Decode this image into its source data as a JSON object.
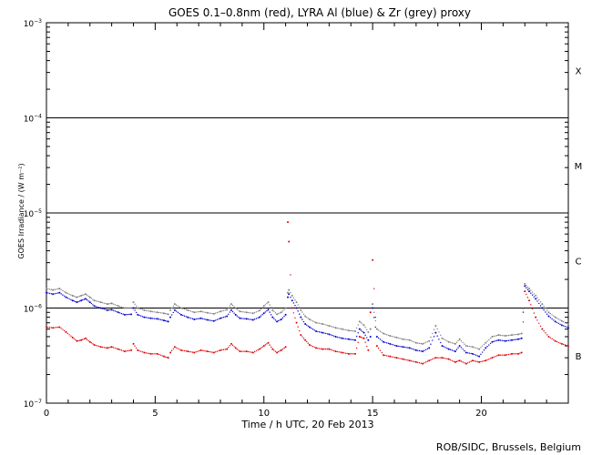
{
  "chart_data": {
    "type": "scatter",
    "title": "GOES 0.1–0.8nm (red), LYRA Al (blue) & Zr (grey) proxy",
    "xlabel": "Time / h UTC, 20 Feb 2013",
    "ylabel": "GOES Irradiance / (W m⁻²)",
    "credit": "ROB/SIDC, Brussels, Belgium",
    "xlim": [
      0,
      24
    ],
    "ylim": [
      1e-07,
      0.001
    ],
    "y_scale": "log",
    "x_ticks": [
      "0",
      "5",
      "10",
      "15",
      "20"
    ],
    "x_tick_values": [
      0,
      5,
      10,
      15,
      20
    ],
    "y_tick_values": [
      1e-07,
      1e-06,
      1e-05,
      0.0001,
      0.001
    ],
    "y_tick_labels": [
      {
        "base": "10",
        "exp": "−7"
      },
      {
        "base": "10",
        "exp": "−6"
      },
      {
        "base": "10",
        "exp": "−5"
      },
      {
        "base": "10",
        "exp": "−4"
      },
      {
        "base": "10",
        "exp": "−3"
      }
    ],
    "class_lines": [
      1e-06,
      1e-05,
      0.0001
    ],
    "flare_classes": [
      {
        "label": "X",
        "value": 0.000316
      },
      {
        "label": "M",
        "value": 3.16e-05
      },
      {
        "label": "C",
        "value": 3.16e-06
      },
      {
        "label": "B",
        "value": 3.16e-07
      }
    ],
    "colors": {
      "red": "#dd0000",
      "blue": "#0000cc",
      "grey": "#808080"
    },
    "series": [
      {
        "color": "red",
        "x": [
          0,
          0.3,
          0.6,
          0.9,
          1.2,
          1.4,
          1.6,
          1.8,
          2.0,
          2.2,
          2.5,
          2.8,
          3.0,
          3.3,
          3.6,
          3.9,
          4.0,
          4.2,
          4.5,
          4.8,
          5.1,
          5.4,
          5.6,
          5.7,
          5.9,
          6.2,
          6.5,
          6.8,
          7.1,
          7.4,
          7.7,
          8.0,
          8.3,
          8.5,
          8.7,
          8.9,
          9.2,
          9.5,
          9.8,
          10.0,
          10.2,
          10.4,
          10.6,
          10.8,
          11.0,
          11.1,
          11.15,
          11.3,
          11.5,
          11.7,
          11.9,
          12.1,
          12.4,
          12.7,
          13.0,
          13.3,
          13.6,
          13.9,
          14.2,
          14.4,
          14.6,
          14.8,
          14.9,
          15.0,
          15.2,
          15.5,
          15.8,
          16.1,
          16.4,
          16.7,
          17.0,
          17.3,
          17.6,
          17.9,
          18.2,
          18.5,
          18.8,
          19.0,
          19.3,
          19.6,
          19.9,
          20.2,
          20.5,
          20.8,
          21.1,
          21.4,
          21.7,
          21.85,
          22.0,
          22.2,
          22.5,
          22.8,
          23.1,
          23.4,
          23.7,
          24.0
        ],
        "y": [
          6.3e-07,
          6.2e-07,
          6.3e-07,
          5.6e-07,
          4.9e-07,
          4.5e-07,
          4.6e-07,
          4.8e-07,
          4.4e-07,
          4.1e-07,
          3.9e-07,
          3.8e-07,
          3.9e-07,
          3.7e-07,
          3.5e-07,
          3.6e-07,
          4.2e-07,
          3.6e-07,
          3.4e-07,
          3.3e-07,
          3.3e-07,
          3.1e-07,
          3e-07,
          3.4e-07,
          3.9e-07,
          3.6e-07,
          3.5e-07,
          3.4e-07,
          3.6e-07,
          3.5e-07,
          3.4e-07,
          3.6e-07,
          3.7e-07,
          4.2e-07,
          3.8e-07,
          3.5e-07,
          3.5e-07,
          3.4e-07,
          3.7e-07,
          4e-07,
          4.3e-07,
          3.7e-07,
          3.4e-07,
          3.6e-07,
          3.9e-07,
          8e-06,
          5e-06,
          1e-06,
          7e-07,
          5.2e-07,
          4.6e-07,
          4.1e-07,
          3.8e-07,
          3.7e-07,
          3.7e-07,
          3.5e-07,
          3.4e-07,
          3.3e-07,
          3.3e-07,
          5e-07,
          4.8e-07,
          3.6e-07,
          9e-07,
          3.2e-06,
          4e-07,
          3.2e-07,
          3.1e-07,
          3e-07,
          2.9e-07,
          2.8e-07,
          2.7e-07,
          2.6e-07,
          2.8e-07,
          3e-07,
          3e-07,
          2.9e-07,
          2.7e-07,
          2.8e-07,
          2.6e-07,
          2.8e-07,
          2.7e-07,
          2.8e-07,
          3e-07,
          3.2e-07,
          3.2e-07,
          3.3e-07,
          3.3e-07,
          3.4e-07,
          1.5e-06,
          1.2e-06,
          8e-07,
          6e-07,
          5e-07,
          4.5e-07,
          4.2e-07,
          4e-07
        ]
      },
      {
        "color": "blue",
        "x": [
          0,
          0.3,
          0.6,
          0.9,
          1.2,
          1.4,
          1.6,
          1.8,
          2.0,
          2.2,
          2.5,
          2.8,
          3.0,
          3.3,
          3.6,
          3.9,
          4.0,
          4.2,
          4.5,
          4.8,
          5.1,
          5.4,
          5.6,
          5.7,
          5.9,
          6.2,
          6.5,
          6.8,
          7.1,
          7.4,
          7.7,
          8.0,
          8.3,
          8.5,
          8.7,
          8.9,
          9.2,
          9.5,
          9.8,
          10.0,
          10.2,
          10.4,
          10.6,
          10.8,
          11.0,
          11.1,
          11.15,
          11.3,
          11.5,
          11.7,
          11.9,
          12.1,
          12.4,
          12.7,
          13.0,
          13.3,
          13.6,
          13.9,
          14.2,
          14.4,
          14.6,
          14.8,
          14.9,
          15.0,
          15.2,
          15.5,
          15.8,
          16.1,
          16.4,
          16.7,
          17.0,
          17.3,
          17.6,
          17.9,
          18.2,
          18.5,
          18.8,
          19.0,
          19.3,
          19.6,
          19.9,
          20.2,
          20.5,
          20.8,
          21.1,
          21.4,
          21.7,
          21.85,
          22.0,
          22.2,
          22.5,
          22.8,
          23.1,
          23.4,
          23.7,
          24.0
        ],
        "y": [
          1.45e-06,
          1.4e-06,
          1.45e-06,
          1.3e-06,
          1.2e-06,
          1.15e-06,
          1.2e-06,
          1.25e-06,
          1.15e-06,
          1.05e-06,
          1e-06,
          9.5e-07,
          9.6e-07,
          9e-07,
          8.5e-07,
          8.6e-07,
          1e-06,
          8.5e-07,
          8e-07,
          7.8e-07,
          7.7e-07,
          7.4e-07,
          7.2e-07,
          8e-07,
          9.5e-07,
          8.5e-07,
          8e-07,
          7.6e-07,
          7.8e-07,
          7.5e-07,
          7.3e-07,
          7.8e-07,
          8.2e-07,
          9.5e-07,
          8.5e-07,
          7.8e-07,
          7.7e-07,
          7.5e-07,
          8e-07,
          8.8e-07,
          9.6e-07,
          8e-07,
          7.2e-07,
          7.6e-07,
          8.5e-07,
          1.3e-06,
          1.4e-06,
          1.2e-06,
          1e-06,
          8e-07,
          6.8e-07,
          6.3e-07,
          5.7e-07,
          5.5e-07,
          5.3e-07,
          5e-07,
          4.8e-07,
          4.7e-07,
          4.6e-07,
          6e-07,
          5.5e-07,
          4.6e-07,
          5e-07,
          1e-06,
          5e-07,
          4.4e-07,
          4.2e-07,
          4e-07,
          3.9e-07,
          3.8e-07,
          3.6e-07,
          3.5e-07,
          3.8e-07,
          5.5e-07,
          4e-07,
          3.7e-07,
          3.5e-07,
          4e-07,
          3.4e-07,
          3.3e-07,
          3.1e-07,
          3.8e-07,
          4.4e-07,
          4.6e-07,
          4.5e-07,
          4.6e-07,
          4.7e-07,
          4.8e-07,
          1.7e-06,
          1.5e-06,
          1.25e-06,
          1e-06,
          8.2e-07,
          7.2e-07,
          6.6e-07,
          6.2e-07
        ]
      },
      {
        "color": "grey",
        "x": [
          0,
          0.3,
          0.6,
          0.9,
          1.2,
          1.4,
          1.6,
          1.8,
          2.0,
          2.2,
          2.5,
          2.8,
          3.0,
          3.3,
          3.6,
          3.9,
          4.0,
          4.2,
          4.5,
          4.8,
          5.1,
          5.4,
          5.6,
          5.7,
          5.9,
          6.2,
          6.5,
          6.8,
          7.1,
          7.4,
          7.7,
          8.0,
          8.3,
          8.5,
          8.7,
          8.9,
          9.2,
          9.5,
          9.8,
          10.0,
          10.2,
          10.4,
          10.6,
          10.8,
          11.0,
          11.1,
          11.15,
          11.3,
          11.5,
          11.7,
          11.9,
          12.1,
          12.4,
          12.7,
          13.0,
          13.3,
          13.6,
          13.9,
          14.2,
          14.4,
          14.6,
          14.8,
          14.9,
          15.0,
          15.2,
          15.5,
          15.8,
          16.1,
          16.4,
          16.7,
          17.0,
          17.3,
          17.6,
          17.9,
          18.2,
          18.5,
          18.8,
          19.0,
          19.3,
          19.6,
          19.9,
          20.2,
          20.5,
          20.8,
          21.1,
          21.4,
          21.7,
          21.85,
          22.0,
          22.2,
          22.5,
          22.8,
          23.1,
          23.4,
          23.7,
          24.0
        ],
        "y": [
          1.6e-06,
          1.55e-06,
          1.6e-06,
          1.45e-06,
          1.35e-06,
          1.3e-06,
          1.35e-06,
          1.4e-06,
          1.3e-06,
          1.2e-06,
          1.15e-06,
          1.1e-06,
          1.12e-06,
          1.05e-06,
          1e-06,
          1e-06,
          1.15e-06,
          1e-06,
          9.5e-07,
          9.2e-07,
          9e-07,
          8.8e-07,
          8.6e-07,
          9.5e-07,
          1.1e-06,
          1e-06,
          9.5e-07,
          9e-07,
          9.2e-07,
          8.9e-07,
          8.7e-07,
          9.2e-07,
          9.6e-07,
          1.1e-06,
          1e-06,
          9.2e-07,
          9e-07,
          8.8e-07,
          9.4e-07,
          1.05e-06,
          1.15e-06,
          9.5e-07,
          8.6e-07,
          9e-07,
          1e-06,
          1.45e-06,
          1.55e-06,
          1.35e-06,
          1.15e-06,
          9.5e-07,
          8.2e-07,
          7.6e-07,
          7e-07,
          6.8e-07,
          6.5e-07,
          6.2e-07,
          6e-07,
          5.8e-07,
          5.7e-07,
          7.2e-07,
          6.6e-07,
          5.6e-07,
          6e-07,
          1.1e-06,
          6e-07,
          5.4e-07,
          5.1e-07,
          4.9e-07,
          4.7e-07,
          4.6e-07,
          4.3e-07,
          4.2e-07,
          4.5e-07,
          6.5e-07,
          4.8e-07,
          4.4e-07,
          4.2e-07,
          4.7e-07,
          4e-07,
          3.9e-07,
          3.7e-07,
          4.3e-07,
          5e-07,
          5.2e-07,
          5.1e-07,
          5.2e-07,
          5.3e-07,
          5.4e-07,
          1.8e-06,
          1.6e-06,
          1.35e-06,
          1.1e-06,
          9e-07,
          8e-07,
          7.3e-07,
          6.8e-07
        ]
      }
    ]
  }
}
